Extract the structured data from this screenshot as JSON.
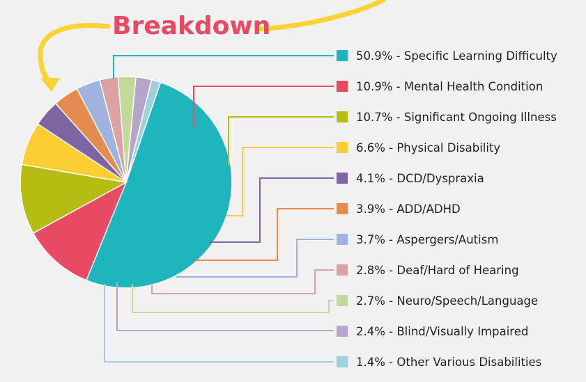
{
  "chart_data": {
    "type": "pie",
    "title": "Breakdown",
    "title_color": "#e94a63",
    "arrow_color": "#fcd235",
    "slices": [
      {
        "label": "50.9% - Specific Learning Difficulty",
        "value": 50.9,
        "color": "#1fb5bc"
      },
      {
        "label": "10.9% - Mental Health Condition",
        "value": 10.9,
        "color": "#e94a63"
      },
      {
        "label": "10.7% - Significant Ongoing Illness",
        "value": 10.7,
        "color": "#b6bd12"
      },
      {
        "label": "6.6% - Physical Disability",
        "value": 6.6,
        "color": "#fdcd34"
      },
      {
        "label": "4.1% - DCD/Dyspraxia",
        "value": 4.1,
        "color": "#7e64a0"
      },
      {
        "label": "3.9% - ADD/ADHD",
        "value": 3.9,
        "color": "#e48b4f"
      },
      {
        "label": "3.7% - Aspergers/Autism",
        "value": 3.7,
        "color": "#a0b3de"
      },
      {
        "label": "2.8% - Deaf/Hard of Hearing",
        "value": 2.8,
        "color": "#dca1a2"
      },
      {
        "label": "2.7% - Neuro/Speech/Language",
        "value": 2.7,
        "color": "#c2d99a"
      },
      {
        "label": "2.4% - Blind/Visually Impaired",
        "value": 2.4,
        "color": "#b4a5c9"
      },
      {
        "label": "1.4% - Other Various Disabilities",
        "value": 1.4,
        "color": "#9fd0dc"
      }
    ]
  }
}
